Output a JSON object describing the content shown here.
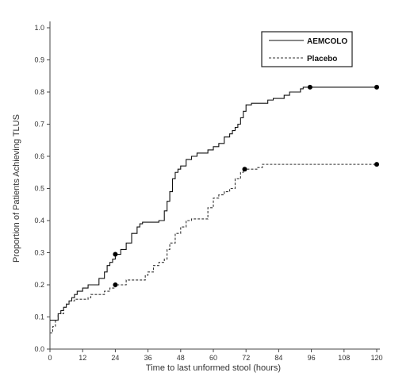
{
  "chart_data": {
    "type": "line",
    "xlabel": "Time to last unformed stool (hours)",
    "ylabel": "Proportion of Patients Achieving TLUS",
    "xlim": [
      0,
      120
    ],
    "ylim": [
      0.0,
      1.0
    ],
    "x_ticks": [
      "0",
      "12",
      "24",
      "36",
      "48",
      "60",
      "72",
      "84",
      "96",
      "108",
      "120"
    ],
    "y_ticks": [
      "0.0",
      "0.1",
      "0.2",
      "0.3",
      "0.4",
      "0.5",
      "0.6",
      "0.7",
      "0.8",
      "0.9",
      "1.0"
    ],
    "grid": false,
    "legend": "top-right",
    "series": [
      {
        "name": "AEMCOLO",
        "style": "solid",
        "color": "#111111",
        "x": [
          0,
          1,
          3,
          4,
          5,
          6,
          7,
          8,
          9,
          10,
          12,
          14,
          16,
          18,
          20,
          21,
          22,
          23,
          24,
          26,
          28,
          30,
          32,
          33,
          34,
          36,
          38,
          40,
          42,
          43,
          44,
          45,
          46,
          47,
          48,
          50,
          52,
          54,
          56,
          58,
          60,
          62,
          64,
          66,
          67,
          68,
          69,
          70,
          71,
          72,
          74,
          76,
          78,
          80,
          82,
          84,
          86,
          88,
          90,
          92,
          93,
          94,
          96,
          120
        ],
        "y": [
          0.09,
          0.09,
          0.11,
          0.12,
          0.13,
          0.14,
          0.15,
          0.16,
          0.17,
          0.18,
          0.19,
          0.2,
          0.2,
          0.22,
          0.24,
          0.26,
          0.27,
          0.28,
          0.295,
          0.31,
          0.33,
          0.36,
          0.38,
          0.39,
          0.395,
          0.395,
          0.395,
          0.4,
          0.43,
          0.46,
          0.49,
          0.53,
          0.55,
          0.56,
          0.57,
          0.59,
          0.6,
          0.61,
          0.61,
          0.62,
          0.63,
          0.64,
          0.66,
          0.67,
          0.68,
          0.69,
          0.7,
          0.72,
          0.74,
          0.76,
          0.765,
          0.765,
          0.765,
          0.775,
          0.78,
          0.78,
          0.79,
          0.8,
          0.8,
          0.81,
          0.815,
          0.815,
          0.815,
          0.815
        ],
        "censored": [
          [
            24,
            0.295
          ],
          [
            95.5,
            0.815
          ],
          [
            120,
            0.815
          ]
        ]
      },
      {
        "name": "Placebo",
        "style": "dashed",
        "color": "#333333",
        "x": [
          0,
          1,
          2,
          3,
          5,
          6,
          7,
          9,
          12,
          14,
          15,
          18,
          20,
          22,
          24,
          28,
          32,
          35,
          36,
          38,
          40,
          42,
          43,
          44,
          46,
          48,
          50,
          52,
          56,
          58,
          60,
          62,
          64,
          66,
          68,
          70,
          71,
          72,
          74,
          76,
          78,
          80,
          84,
          96,
          120
        ],
        "y": [
          0.05,
          0.07,
          0.09,
          0.11,
          0.13,
          0.14,
          0.15,
          0.155,
          0.155,
          0.16,
          0.17,
          0.17,
          0.18,
          0.19,
          0.2,
          0.215,
          0.215,
          0.23,
          0.24,
          0.26,
          0.27,
          0.28,
          0.31,
          0.33,
          0.36,
          0.38,
          0.4,
          0.405,
          0.405,
          0.44,
          0.47,
          0.48,
          0.49,
          0.5,
          0.53,
          0.55,
          0.555,
          0.56,
          0.56,
          0.565,
          0.575,
          0.575,
          0.575,
          0.575,
          0.575
        ],
        "censored": [
          [
            24,
            0.2
          ],
          [
            71.5,
            0.56
          ],
          [
            120,
            0.575
          ]
        ]
      }
    ]
  }
}
